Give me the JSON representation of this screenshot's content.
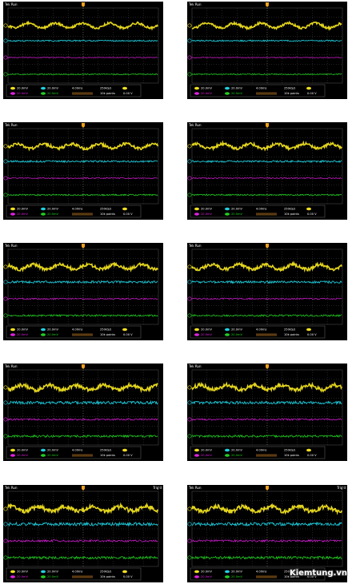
{
  "screens": [
    {
      "status": "Tek Run",
      "ch1": "20.0mV",
      "ch2": "20.0mV",
      "ch3": "20.0mV",
      "ch4": "20.0mV",
      "timebase": "4.00ms",
      "rate": "250kS/s",
      "points": "10k points",
      "level": "0.00 V"
    },
    {
      "status": "Tek Run",
      "ch1": "20.0mV",
      "ch2": "20.0mV",
      "ch3": "20.0mV",
      "ch4": "20.0mV",
      "timebase": "4.00ms",
      "rate": "250kS/s",
      "points": "10k points",
      "level": "0.00 V"
    },
    {
      "status": "Tek Run",
      "ch1": "20.0mV",
      "ch2": "20.0mV",
      "ch3": "20.0mV",
      "ch4": "20.0mV",
      "timebase": "4.00ms",
      "rate": "250kS/s",
      "points": "10k points",
      "level": "0.00 V"
    },
    {
      "status": "Tek Run",
      "ch1": "20.0mV",
      "ch2": "20.0mV",
      "ch3": "20.0mV",
      "ch4": "20.0mV",
      "timebase": "4.00ms",
      "rate": "250kS/s",
      "points": "10k points",
      "level": "0.00 V"
    },
    {
      "status": "Tek Run",
      "ch1": "20.0mV",
      "ch2": "20.0mV",
      "ch3": "20.0mV",
      "ch4": "20.0mV",
      "timebase": "4.00ms",
      "rate": "250kS/s",
      "points": "10k points",
      "level": "0.00 V"
    },
    {
      "status": "Tek Run",
      "ch1": "20.0mV",
      "ch2": "20.0mV",
      "ch3": "20.0mV",
      "ch4": "20.0mV",
      "timebase": "4.00ms",
      "rate": "250kS/s",
      "points": "10k points",
      "level": "0.00 V"
    },
    {
      "status": "Tek Run",
      "ch1": "20.0mV",
      "ch2": "20.0mV",
      "ch3": "20.0mV",
      "ch4": "20.0mV",
      "timebase": "4.00ms",
      "rate": "250kS/s",
      "points": "10k points",
      "level": "0.00 V"
    },
    {
      "status": "Tek Run",
      "ch1": "20.0mV",
      "ch2": "20.0mV",
      "ch3": "20.0mV",
      "ch4": "20.0mV",
      "timebase": "4.00ms",
      "rate": "250kS/s",
      "points": "10k points",
      "level": "0.00 V"
    },
    {
      "status": "Tek Run",
      "trig": "Trig'd",
      "ch1": "20.0mV",
      "ch2": "20.0mV",
      "ch3": "20.0mV",
      "ch4": "20.0mV",
      "timebase": "4.00ms",
      "rate": "250kS/s",
      "points": "10k points",
      "level": "0.00 V"
    },
    {
      "status": "Tek Run",
      "trig": "Trig'd",
      "ch1": "20.0mV",
      "ch2": "20.0mV",
      "ch3": "20.0mV",
      "ch4": "20.0mV",
      "timebase": "4.00ms",
      "rate": "250kS/s",
      "points": "10k points",
      "level": "0.00 V"
    }
  ],
  "watermark": "Kiemtung.vn"
}
